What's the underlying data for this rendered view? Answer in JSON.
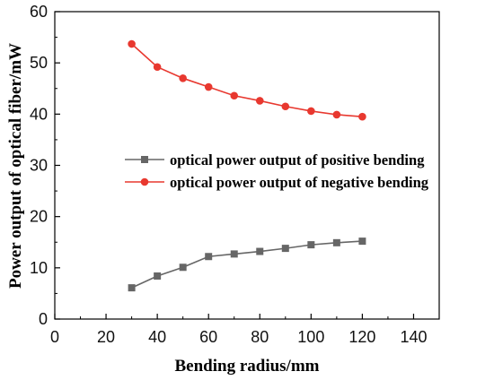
{
  "chart_data": {
    "type": "line",
    "xlabel": "Bending radius/mm",
    "ylabel": "Power output of optical fiber/mW",
    "xlim": [
      0,
      150
    ],
    "ylim": [
      0,
      60
    ],
    "xticks": [
      0,
      20,
      40,
      60,
      80,
      100,
      120,
      140
    ],
    "yticks": [
      0,
      10,
      20,
      30,
      40,
      50,
      60
    ],
    "grid": false,
    "legend_position": "center-right",
    "x": [
      30,
      40,
      50,
      60,
      70,
      80,
      90,
      100,
      110,
      120
    ],
    "series": [
      {
        "name": "optical power output of positive bending",
        "color": "#666666",
        "marker": "square",
        "values": [
          6.1,
          8.4,
          10.1,
          12.2,
          12.7,
          13.2,
          13.8,
          14.5,
          14.9,
          15.2
        ]
      },
      {
        "name": "optical power output of negative bending",
        "color": "#e8382f",
        "marker": "circle",
        "values": [
          53.7,
          49.2,
          47.0,
          45.3,
          43.6,
          42.6,
          41.5,
          40.6,
          39.9,
          39.5
        ]
      }
    ]
  }
}
